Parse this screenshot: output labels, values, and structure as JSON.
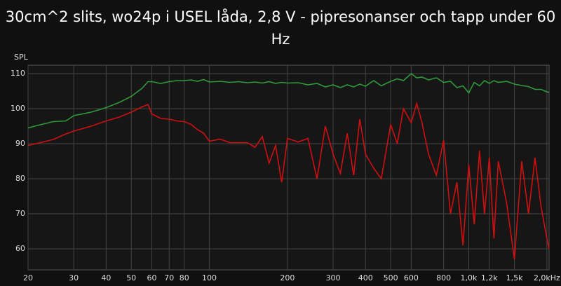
{
  "chart_data": {
    "type": "line",
    "title": "30cm^2 slits, wo24p i USEL låda, 2,8 V - pipresonanser och tapp under 60 Hz",
    "y_label": "SPL",
    "log_x": true,
    "grid": true,
    "x": [
      20,
      22,
      25,
      28,
      30,
      35,
      40,
      45,
      50,
      55,
      58,
      60,
      65,
      70,
      75,
      80,
      85,
      90,
      95,
      100,
      110,
      120,
      130,
      140,
      150,
      160,
      170,
      180,
      190,
      200,
      220,
      240,
      260,
      280,
      300,
      320,
      340,
      360,
      380,
      400,
      430,
      460,
      500,
      530,
      560,
      600,
      630,
      660,
      700,
      750,
      800,
      850,
      900,
      950,
      1000,
      1050,
      1100,
      1150,
      1200,
      1250,
      1300,
      1400,
      1500,
      1600,
      1700,
      1800,
      1900,
      2000,
      2040
    ],
    "series": [
      {
        "name": "Green response",
        "color": "#2e9a3a",
        "values": [
          94.5,
          95.3,
          96.3,
          96.5,
          98,
          99,
          100.3,
          101.8,
          103.5,
          105.8,
          107.7,
          107.7,
          107.2,
          107.7,
          108,
          108,
          108.2,
          107.8,
          108.3,
          107.6,
          107.8,
          107.5,
          107.7,
          107.4,
          107.6,
          107.3,
          107.7,
          107.2,
          107.5,
          107.3,
          107.4,
          106.8,
          107.2,
          106.2,
          106.8,
          106,
          106.8,
          106.2,
          107,
          106.4,
          108,
          106.5,
          107.8,
          108.5,
          108,
          110,
          108.8,
          109,
          108.2,
          108.8,
          107.5,
          107.8,
          106,
          106.5,
          104.5,
          107.5,
          106.5,
          108,
          107.2,
          108,
          107.5,
          107.8,
          107,
          106.6,
          106.3,
          105.5,
          105.5,
          104.8,
          104.6
        ]
      },
      {
        "name": "Red response",
        "color": "#d01010",
        "values": [
          89.5,
          90.2,
          91.2,
          92.8,
          93.6,
          95,
          96.5,
          97.6,
          99,
          100.5,
          101.2,
          98.5,
          97.2,
          97,
          96.5,
          96.3,
          95.5,
          94,
          93,
          90.7,
          91.3,
          90.3,
          90.3,
          90.3,
          89,
          92,
          84.5,
          89.5,
          79,
          91.5,
          90.5,
          91.5,
          80,
          95,
          87,
          81.5,
          93,
          81,
          97,
          87,
          83,
          80,
          95.5,
          90,
          100,
          96,
          101.5,
          96,
          87,
          81,
          91,
          70,
          79,
          61,
          84,
          67,
          88,
          70,
          86,
          63,
          85,
          73,
          57,
          85,
          70,
          86,
          72,
          63,
          60
        ]
      }
    ],
    "xlim": [
      20,
      2040
    ],
    "xticks": [
      20,
      30,
      40,
      50,
      60,
      70,
      80,
      100,
      200,
      300,
      400,
      500,
      600,
      800,
      {
        "value": 1000,
        "label": "1,0k"
      },
      {
        "value": 1200,
        "label": "1,2k"
      },
      {
        "value": 1500,
        "label": "1,5k"
      },
      {
        "value": 2000,
        "label": "2,0kHz"
      }
    ],
    "ylim": [
      54,
      112.4
    ],
    "yticks": [
      60,
      70,
      80,
      90,
      100,
      110
    ]
  }
}
